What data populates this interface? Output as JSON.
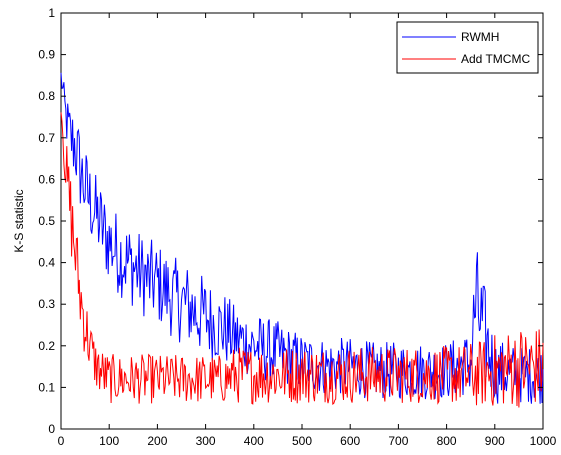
{
  "chart_data": {
    "type": "line",
    "xlabel": "",
    "ylabel": "K-S statistic",
    "xlim": [
      0,
      1000
    ],
    "ylim": [
      0,
      1
    ],
    "xticks": [
      0,
      100,
      200,
      300,
      400,
      500,
      600,
      700,
      800,
      900,
      1000
    ],
    "yticks": [
      0,
      0.1,
      0.2,
      0.3,
      0.4,
      0.5,
      0.6,
      0.7,
      0.8,
      0.9,
      1
    ],
    "xtick_labels": [
      "0",
      "100",
      "200",
      "300",
      "400",
      "500",
      "600",
      "700",
      "800",
      "900",
      "1000"
    ],
    "ytick_labels": [
      "0",
      "0.1",
      "0.2",
      "0.3",
      "0.4",
      "0.5",
      "0.6",
      "0.7",
      "0.8",
      "0.9",
      "1"
    ],
    "grid": false,
    "legend_position": "top-right",
    "x": [
      0,
      10,
      20,
      30,
      40,
      50,
      60,
      70,
      80,
      90,
      100,
      120,
      140,
      160,
      180,
      200,
      220,
      240,
      260,
      280,
      300,
      320,
      340,
      360,
      380,
      400,
      450,
      500,
      550,
      600,
      650,
      700,
      750,
      800,
      850,
      860,
      900,
      950,
      1000
    ],
    "series": [
      {
        "name": "RWMH",
        "color": "#0000ff",
        "values": [
          0.85,
          0.75,
          0.7,
          0.68,
          0.62,
          0.58,
          0.55,
          0.52,
          0.5,
          0.47,
          0.45,
          0.42,
          0.4,
          0.38,
          0.36,
          0.35,
          0.33,
          0.31,
          0.3,
          0.28,
          0.27,
          0.25,
          0.24,
          0.22,
          0.21,
          0.2,
          0.18,
          0.16,
          0.15,
          0.15,
          0.14,
          0.14,
          0.14,
          0.14,
          0.16,
          0.3,
          0.14,
          0.13,
          0.13
        ],
        "spread": [
          0.02,
          0.06,
          0.08,
          0.1,
          0.1,
          0.1,
          0.1,
          0.1,
          0.1,
          0.1,
          0.1,
          0.1,
          0.1,
          0.1,
          0.1,
          0.1,
          0.1,
          0.1,
          0.1,
          0.1,
          0.1,
          0.09,
          0.09,
          0.08,
          0.08,
          0.08,
          0.08,
          0.07,
          0.07,
          0.07,
          0.07,
          0.07,
          0.07,
          0.07,
          0.08,
          0.16,
          0.08,
          0.07,
          0.07
        ]
      },
      {
        "name": "Add TMCMC",
        "color": "#ff0000",
        "values": [
          0.78,
          0.62,
          0.52,
          0.42,
          0.32,
          0.25,
          0.2,
          0.16,
          0.14,
          0.13,
          0.12,
          0.12,
          0.12,
          0.12,
          0.12,
          0.12,
          0.12,
          0.12,
          0.12,
          0.12,
          0.12,
          0.12,
          0.12,
          0.13,
          0.13,
          0.13,
          0.13,
          0.13,
          0.13,
          0.13,
          0.13,
          0.13,
          0.13,
          0.13,
          0.13,
          0.13,
          0.14,
          0.15,
          0.15
        ],
        "spread": [
          0.02,
          0.08,
          0.1,
          0.1,
          0.09,
          0.08,
          0.07,
          0.06,
          0.06,
          0.06,
          0.06,
          0.06,
          0.06,
          0.06,
          0.06,
          0.06,
          0.06,
          0.06,
          0.06,
          0.06,
          0.06,
          0.06,
          0.06,
          0.07,
          0.07,
          0.07,
          0.07,
          0.07,
          0.07,
          0.07,
          0.07,
          0.07,
          0.07,
          0.07,
          0.08,
          0.08,
          0.09,
          0.1,
          0.1
        ]
      }
    ]
  }
}
